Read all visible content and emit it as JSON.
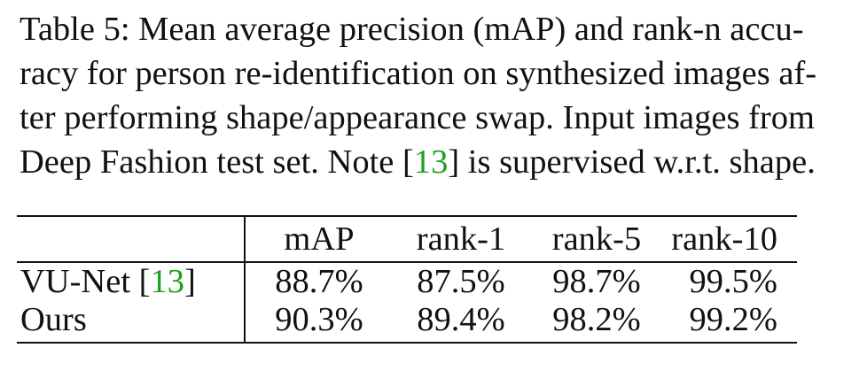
{
  "caption": {
    "lines": [
      "Table 5: Mean average precision (mAP) and rank-n accu-",
      "racy for person re-identification on synthesized images af-",
      "ter performing shape/appearance swap. Input images from"
    ],
    "line4_pre": "Deep Fashion test set. Note [",
    "line4_cite": "13",
    "line4_post": "] is supervised w.r.t. shape."
  },
  "table": {
    "headers": [
      "",
      "mAP",
      "rank-1",
      "rank-5",
      "rank-10"
    ],
    "rows": [
      {
        "method_pre": "VU-Net [",
        "method_cite": "13",
        "method_post": "]",
        "values": [
          "88.7%",
          "87.5%",
          "98.7%",
          "99.5%"
        ]
      },
      {
        "method_pre": "Ours",
        "method_cite": "",
        "method_post": "",
        "values": [
          "90.3%",
          "89.4%",
          "98.2%",
          "99.2%"
        ]
      }
    ]
  },
  "colors": {
    "citation": "#1aa31a",
    "text": "#111111"
  }
}
